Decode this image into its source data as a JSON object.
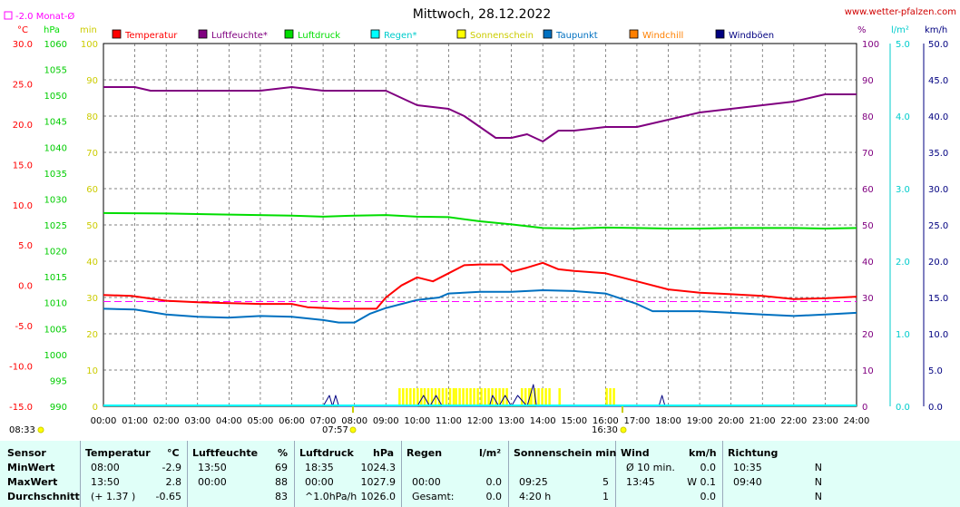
{
  "header": {
    "title": "Mittwoch, 28.12.2022",
    "site": "www.wetter-pfalzen.com",
    "monthly_avg": "-2.0 Monat-Ø"
  },
  "legend": [
    {
      "label": "Temperatur",
      "color": "#ff0000"
    },
    {
      "label": "Luftfeuchte*",
      "color": "#800080"
    },
    {
      "label": "Luftdruck",
      "color": "#00dd00"
    },
    {
      "label": "Regen*",
      "color": "#00ffff"
    },
    {
      "label": "Sonnenschein",
      "color": "#ffff00"
    },
    {
      "label": "Taupunkt",
      "color": "#0070c0"
    },
    {
      "label": "Windchill",
      "color": "#ff8000"
    },
    {
      "label": "Windböen",
      "color": "#000080"
    }
  ],
  "axes": {
    "temp": {
      "unit": "°C",
      "ticks": [
        "30.0",
        "25.0",
        "20.0",
        "15.0",
        "10.0",
        "5.0",
        "0.0",
        "-5.0",
        "-10.0",
        "-15.0"
      ]
    },
    "pressure": {
      "unit": "hPa",
      "ticks": [
        "1060",
        "1055",
        "1050",
        "1045",
        "1040",
        "1035",
        "1030",
        "1025",
        "1020",
        "1015",
        "1010",
        "1005",
        "1000",
        "995",
        "990"
      ]
    },
    "sun_min": {
      "unit": "min",
      "ticks": [
        "100",
        "90",
        "80",
        "70",
        "60",
        "50",
        "40",
        "30",
        "20",
        "10",
        "0"
      ]
    },
    "humidity": {
      "unit": "%",
      "ticks": [
        "100",
        "90",
        "80",
        "70",
        "60",
        "50",
        "40",
        "30",
        "20",
        "10",
        "0"
      ]
    },
    "rain": {
      "unit": "l/m²",
      "ticks": [
        "5.0",
        "4.0",
        "3.0",
        "2.0",
        "1.0",
        "0.0"
      ]
    },
    "wind": {
      "unit": "km/h",
      "ticks": [
        "50.0",
        "45.0",
        "40.0",
        "35.0",
        "30.0",
        "25.0",
        "20.0",
        "15.0",
        "10.0",
        "5.0",
        "0.0"
      ]
    },
    "time_ticks": [
      "00:00",
      "01:00",
      "02:00",
      "03:00",
      "04:00",
      "05:00",
      "06:00",
      "07:00",
      "08:00",
      "09:00",
      "10:00",
      "11:00",
      "12:00",
      "13:00",
      "14:00",
      "15:00",
      "16:00",
      "17:00",
      "18:00",
      "19:00",
      "20:00",
      "21:00",
      "22:00",
      "23:00",
      "24:00"
    ]
  },
  "sun_markers": {
    "sunrise": "08:33",
    "sunrise_day": "07:57",
    "sunset": "16:30"
  },
  "chart_data": {
    "type": "line",
    "title": "Mittwoch, 28.12.2022",
    "x_unit": "hours",
    "xlim": [
      0,
      24
    ],
    "monthly_avg_temp": -2.0,
    "series": [
      {
        "name": "Temperatur",
        "color": "#ff0000",
        "axis": "temp",
        "ylim": [
          -15,
          30
        ],
        "x": [
          0,
          0.9,
          2,
          3,
          4,
          5,
          6,
          6.5,
          7.5,
          8.7,
          9,
          9.5,
          10,
          10.5,
          11,
          11.5,
          12,
          12.7,
          13,
          13.5,
          14,
          14.5,
          15,
          16,
          17,
          18,
          19,
          20,
          21,
          22,
          23,
          24
        ],
        "y": [
          -1.2,
          -1.3,
          -1.9,
          -2.1,
          -2.2,
          -2.3,
          -2.3,
          -2.7,
          -2.9,
          -2.9,
          -1.5,
          0.0,
          1.0,
          0.5,
          1.5,
          2.5,
          2.6,
          2.6,
          1.7,
          2.2,
          2.8,
          2.0,
          1.8,
          1.5,
          0.5,
          -0.5,
          -0.9,
          -1.1,
          -1.3,
          -1.7,
          -1.6,
          -1.4
        ]
      },
      {
        "name": "Luftfeuchte*",
        "color": "#800080",
        "axis": "humidity",
        "ylim": [
          0,
          100
        ],
        "x": [
          0,
          1,
          1.5,
          2,
          3,
          4,
          5,
          6,
          7,
          8,
          9,
          9.5,
          10,
          11,
          11.5,
          12,
          12.5,
          13,
          13.5,
          14,
          14.5,
          15,
          16,
          17,
          18,
          19,
          20,
          21,
          22,
          23,
          24
        ],
        "y": [
          88,
          88,
          87,
          87,
          87,
          87,
          87,
          88,
          87,
          87,
          87,
          85,
          83,
          82,
          80,
          77,
          74,
          74,
          75,
          73,
          76,
          76,
          77,
          77,
          79,
          81,
          82,
          83,
          84,
          86,
          86
        ]
      },
      {
        "name": "Luftdruck",
        "color": "#00dd00",
        "axis": "pressure",
        "ylim": [
          990,
          1060
        ],
        "x": [
          0,
          2,
          4,
          6,
          7,
          8,
          9,
          10,
          11,
          12,
          13,
          14,
          15,
          16,
          17,
          18,
          19,
          20,
          21,
          22,
          23,
          24
        ],
        "y": [
          1027.3,
          1027.2,
          1027.0,
          1026.8,
          1026.6,
          1026.8,
          1026.9,
          1026.6,
          1026.5,
          1025.7,
          1025.1,
          1024.4,
          1024.3,
          1024.5,
          1024.4,
          1024.3,
          1024.3,
          1024.4,
          1024.4,
          1024.4,
          1024.3,
          1024.4
        ]
      },
      {
        "name": "Taupunkt",
        "color": "#0070c0",
        "axis": "temp",
        "ylim": [
          -15,
          30
        ],
        "x": [
          0,
          1,
          2,
          3,
          4,
          5,
          6,
          7,
          7.5,
          8,
          8.5,
          9,
          10,
          10.7,
          11,
          12,
          12.5,
          13,
          14,
          15,
          16,
          17,
          17.5,
          18,
          19,
          20,
          21,
          22,
          23,
          24
        ],
        "y": [
          -2.9,
          -3.0,
          -3.6,
          -3.9,
          -4.0,
          -3.8,
          -3.9,
          -4.3,
          -4.6,
          -4.6,
          -3.5,
          -2.8,
          -1.8,
          -1.5,
          -1.0,
          -0.8,
          -0.8,
          -0.8,
          -0.6,
          -0.7,
          -1.0,
          -2.3,
          -3.2,
          -3.2,
          -3.2,
          -3.4,
          -3.6,
          -3.8,
          -3.6,
          -3.4
        ]
      },
      {
        "name": "Sonnenschein",
        "color": "#ffff00",
        "axis": "sun_min",
        "unit": "minutes per interval",
        "bars": [
          [
            9.4,
            10.2,
            5
          ],
          [
            10.2,
            11.2,
            5
          ],
          [
            11.2,
            12.9,
            5
          ],
          [
            13.3,
            13.6,
            5
          ],
          [
            13.6,
            14.2,
            5
          ],
          [
            14.5,
            14.6,
            5
          ],
          [
            16.0,
            16.3,
            5
          ]
        ]
      },
      {
        "name": "Windböen",
        "color": "#000080",
        "axis": "wind",
        "x": [
          7.0,
          7.2,
          7.3,
          7.4,
          7.5,
          7.6,
          7.9,
          10.0,
          10.2,
          10.4,
          10.6,
          10.8,
          12.3,
          12.4,
          12.6,
          12.8,
          13.0,
          13.2,
          13.5,
          13.7,
          13.8,
          13.9,
          17.7,
          17.8,
          17.9
        ],
        "y": [
          0,
          1.5,
          0,
          1.5,
          0,
          0,
          0,
          0,
          1.5,
          0,
          1.5,
          0,
          0,
          1.5,
          0,
          1.5,
          0,
          1.5,
          0,
          3,
          0,
          0,
          0,
          1.5,
          0
        ]
      },
      {
        "name": "Regen*",
        "color": "#00ffff",
        "axis": "rain",
        "values": [
          0.0
        ]
      }
    ]
  },
  "stats": {
    "headers": {
      "sensor": "Sensor",
      "temp": "Temperatur",
      "temp_unit": "°C",
      "hum": "Luftfeuchte",
      "hum_unit": "%",
      "press": "Luftdruck",
      "press_unit": "hPa",
      "rain": "Regen",
      "rain_unit": "l/m²",
      "sun": "Sonnenschein min",
      "wind": "Wind",
      "wind_unit": "km/h",
      "dir": "Richtung"
    },
    "rows": [
      {
        "label": "MinWert",
        "temp_time": "08:00",
        "temp_val": "-2.9",
        "hum_time": "13:50",
        "hum_val": "69",
        "press_time": "18:35",
        "press_val": "1024.3",
        "rain_time": "",
        "rain_val": "",
        "sun_time": "",
        "sun_val": "",
        "wind_time": "Ø 10 min.",
        "wind_val": "0.0",
        "dir_time": "10:35",
        "dir_val": "N"
      },
      {
        "label": "MaxWert",
        "temp_time": "13:50",
        "temp_val": "2.8",
        "hum_time": "00:00",
        "hum_val": "88",
        "press_time": "00:00",
        "press_val": "1027.9",
        "rain_time": "00:00",
        "rain_val": "0.0",
        "sun_time": "09:25",
        "sun_val": "5",
        "wind_time": "13:45",
        "wind_val": "W 0.1",
        "dir_time": "09:40",
        "dir_val": "N"
      },
      {
        "label": "Durchschnitt",
        "temp_time": "(+ 1.37 )",
        "temp_val": "-0.65",
        "hum_time": "",
        "hum_val": "83",
        "press_time": "^1.0hPa/h",
        "press_val": "1026.0",
        "rain_time": "Gesamt:",
        "rain_val": "0.0",
        "sun_time": "4:20 h",
        "sun_val": "1",
        "wind_time": "",
        "wind_val": "0.0",
        "dir_time": "",
        "dir_val": "N"
      }
    ]
  }
}
